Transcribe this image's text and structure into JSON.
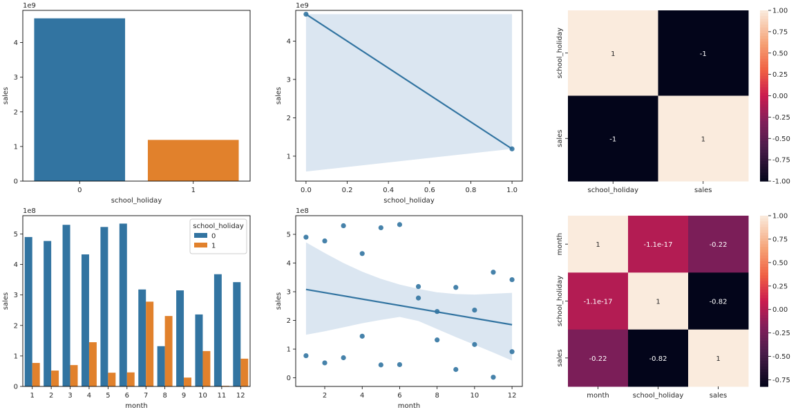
{
  "chart_data": [
    {
      "id": "bar1",
      "type": "bar",
      "xlabel": "school_holiday",
      "ylabel": "sales",
      "y_offset_text": "1e9",
      "categories": [
        "0",
        "1"
      ],
      "values": [
        4.7,
        1.19
      ],
      "ylim": [
        0,
        4.93
      ],
      "yticks": [
        "0",
        "1",
        "2",
        "3",
        "4"
      ],
      "colors": [
        "#3274a1",
        "#e1812c"
      ]
    },
    {
      "id": "reg1",
      "type": "scatter",
      "xlabel": "school_holiday",
      "ylabel": "sales",
      "y_offset_text": "1e9",
      "points": [
        [
          0.0,
          4.7
        ],
        [
          1.0,
          1.19
        ]
      ],
      "fit_line": [
        [
          0.0,
          4.7
        ],
        [
          1.0,
          1.19
        ]
      ],
      "ci_band": {
        "x": [
          0.0,
          1.0
        ],
        "upper": [
          4.7,
          4.7
        ],
        "lower": [
          0.6,
          1.19
        ]
      },
      "xlim": [
        -0.05,
        1.05
      ],
      "ylim": [
        0.35,
        4.8
      ],
      "xticks": [
        "0.0",
        "0.2",
        "0.4",
        "0.6",
        "0.8",
        "1.0"
      ],
      "yticks": [
        "1",
        "2",
        "3",
        "4"
      ],
      "color": "#3274a1",
      "band_color": "#dbe6f1"
    },
    {
      "id": "heat1",
      "type": "heatmap",
      "rows": [
        "school_holiday",
        "sales"
      ],
      "cols": [
        "school_holiday",
        "sales"
      ],
      "values": [
        [
          1,
          -1
        ],
        [
          -1,
          1
        ]
      ],
      "labels": [
        [
          "1",
          "-1"
        ],
        [
          "-1",
          "1"
        ]
      ],
      "colorbar": {
        "min": -1.0,
        "max": 1.0,
        "ticks": [
          "1.00",
          "0.75",
          "0.50",
          "0.25",
          "0.00",
          "-0.25",
          "-0.50",
          "-0.75",
          "-1.00"
        ]
      }
    },
    {
      "id": "bar2",
      "type": "bar",
      "xlabel": "month",
      "ylabel": "sales",
      "y_offset_text": "1e8",
      "categories": [
        "1",
        "2",
        "3",
        "4",
        "5",
        "6",
        "7",
        "8",
        "9",
        "10",
        "11",
        "12"
      ],
      "series": [
        {
          "name": "0",
          "color": "#3274a1",
          "values": [
            4.9,
            4.77,
            5.3,
            4.33,
            5.23,
            5.34,
            3.18,
            1.32,
            3.15,
            2.36,
            3.68,
            3.42
          ]
        },
        {
          "name": "1",
          "color": "#e1812c",
          "values": [
            0.77,
            0.52,
            0.7,
            1.45,
            0.45,
            0.46,
            2.78,
            2.31,
            0.29,
            1.16,
            0.02,
            0.91
          ]
        }
      ],
      "legend": {
        "title": "school_holiday",
        "placement": "top-right"
      },
      "ylim": [
        0,
        5.6
      ],
      "yticks": [
        "0",
        "1",
        "2",
        "3",
        "4",
        "5"
      ]
    },
    {
      "id": "reg2",
      "type": "scatter",
      "xlabel": "month",
      "ylabel": "sales",
      "y_offset_text": "1e8",
      "points": [
        [
          1,
          4.9
        ],
        [
          1,
          0.77
        ],
        [
          2,
          4.77
        ],
        [
          2,
          0.52
        ],
        [
          3,
          5.3
        ],
        [
          3,
          0.7
        ],
        [
          4,
          4.33
        ],
        [
          4,
          1.45
        ],
        [
          5,
          5.23
        ],
        [
          5,
          0.45
        ],
        [
          6,
          5.34
        ],
        [
          6,
          0.46
        ],
        [
          7,
          3.18
        ],
        [
          7,
          2.78
        ],
        [
          8,
          2.31
        ],
        [
          8,
          1.32
        ],
        [
          9,
          3.15
        ],
        [
          9,
          0.29
        ],
        [
          10,
          2.36
        ],
        [
          10,
          1.16
        ],
        [
          11,
          3.68
        ],
        [
          11,
          0.02
        ],
        [
          12,
          3.42
        ],
        [
          12,
          0.91
        ]
      ],
      "fit_line": [
        [
          1,
          3.08
        ],
        [
          12,
          1.85
        ]
      ],
      "ci_band": {
        "x": [
          1,
          2,
          3,
          4,
          5,
          6,
          7,
          8,
          9,
          10,
          11,
          12
        ],
        "upper": [
          4.72,
          4.35,
          4.0,
          3.7,
          3.45,
          3.25,
          3.1,
          2.98,
          2.92,
          2.9,
          2.93,
          2.96
        ],
        "lower": [
          1.5,
          1.62,
          1.76,
          1.9,
          2.02,
          2.12,
          1.98,
          1.7,
          1.42,
          1.15,
          0.88,
          0.6
        ]
      },
      "xlim": [
        0.45,
        12.55
      ],
      "ylim": [
        -0.3,
        5.65
      ],
      "xticks": [
        "2",
        "4",
        "6",
        "8",
        "10",
        "12"
      ],
      "yticks": [
        "0",
        "1",
        "2",
        "3",
        "4",
        "5"
      ],
      "color": "#3274a1",
      "band_color": "#dbe6f1"
    },
    {
      "id": "heat2",
      "type": "heatmap",
      "rows": [
        "month",
        "school_holiday",
        "sales"
      ],
      "cols": [
        "month",
        "school_holiday",
        "sales"
      ],
      "values": [
        [
          1,
          -1.1e-17,
          -0.22
        ],
        [
          -1.1e-17,
          1,
          -0.82
        ],
        [
          -0.22,
          -0.82,
          1
        ]
      ],
      "labels": [
        [
          "1",
          "-1.1e-17",
          "-0.22"
        ],
        [
          "-1.1e-17",
          "1",
          "-0.82"
        ],
        [
          "-0.22",
          "-0.82",
          "1"
        ]
      ],
      "colorbar": {
        "min": -0.82,
        "max": 1.0,
        "ticks": [
          "1.00",
          "0.75",
          "0.50",
          "0.25",
          "0.00",
          "-0.25",
          "-0.50",
          "-0.75"
        ]
      }
    }
  ]
}
